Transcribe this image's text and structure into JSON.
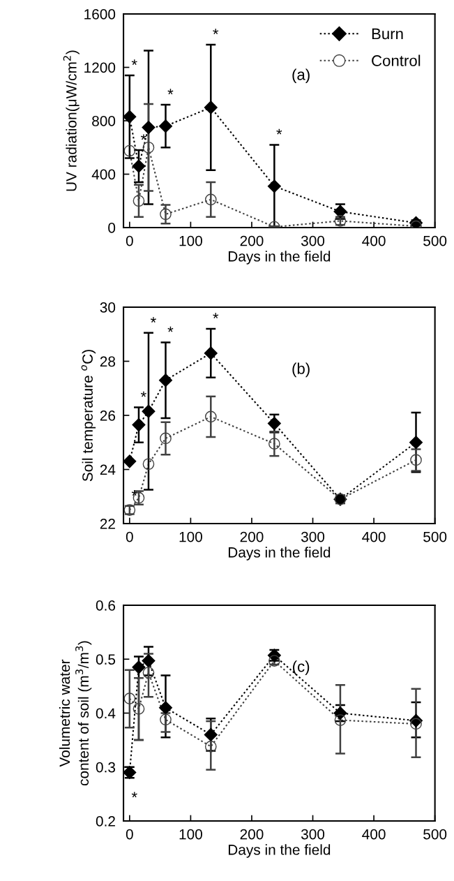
{
  "chart_data": [
    {
      "type": "line",
      "ylabel": "UV radiation(μW/cm$^{2}$)",
      "xlabel": "Days in the field",
      "x": [
        0,
        15,
        31,
        59,
        133,
        237,
        345,
        469
      ],
      "xlim": [
        -10,
        500
      ],
      "xticks": [
        0,
        100,
        200,
        300,
        400,
        500
      ],
      "ylim": [
        0,
        1600
      ],
      "yticks": [
        0,
        400,
        800,
        1200,
        1600
      ],
      "line_style": "dotted",
      "grid": false,
      "legend": "top right",
      "series": [
        {
          "name": "Burn",
          "color": "#000000",
          "marker": "diamond",
          "values": [
            830,
            460,
            750,
            760,
            900,
            310,
            120,
            35
          ],
          "errors": [
            310,
            120,
            575,
            160,
            470,
            310,
            55,
            20
          ]
        },
        {
          "name": "Control",
          "color": "#404040",
          "marker": "circle",
          "values": [
            575,
            200,
            600,
            100,
            210,
            5,
            50,
            10
          ],
          "errors": [
            null,
            120,
            325,
            70,
            130,
            5,
            30,
            10
          ]
        }
      ],
      "annotations": [
        "(a)",
        {
          "text": "*",
          "x": 0,
          "y": 1140
        },
        {
          "text": "*",
          "x": 15,
          "y": 580
        },
        {
          "text": "*",
          "x": 59,
          "y": 920
        },
        {
          "text": "*",
          "x": 133,
          "y": 1370
        },
        {
          "text": "*",
          "x": 237,
          "y": 620
        }
      ]
    },
    {
      "type": "line",
      "ylabel": "Soil temperature $^{o}$C)",
      "xlabel": "Days in the field",
      "x": [
        0,
        15,
        31,
        59,
        133,
        237,
        345,
        469
      ],
      "xlim": [
        -10,
        500
      ],
      "xticks": [
        0,
        100,
        200,
        300,
        400,
        500
      ],
      "ylim": [
        22,
        30
      ],
      "yticks": [
        22,
        24,
        26,
        28,
        30
      ],
      "line_style": "dotted",
      "grid": false,
      "series": [
        {
          "color": "#000000",
          "marker": "diamond",
          "values": [
            24.3,
            25.65,
            26.15,
            27.3,
            28.3,
            25.7,
            22.9,
            25.0
          ],
          "errors": [
            null,
            0.65,
            2.9,
            1.4,
            0.9,
            0.33,
            0.15,
            1.1
          ]
        },
        {
          "color": "#404040",
          "marker": "circle",
          "values": [
            22.5,
            22.95,
            24.2,
            25.15,
            25.95,
            24.95,
            22.9,
            24.35
          ],
          "errors": [
            0.15,
            0.25,
            null,
            0.6,
            0.75,
            0.45,
            0.15,
            0.4
          ]
        }
      ],
      "annotations": [
        "(b)",
        {
          "text": "*",
          "x": 0,
          "y": 22.65
        },
        {
          "text": "*",
          "x": 15,
          "y": 26.3
        },
        {
          "text": "*",
          "x": 31,
          "y": 29.05
        },
        {
          "text": "*",
          "x": 59,
          "y": 28.7
        },
        {
          "text": "*",
          "x": 133,
          "y": 29.2
        }
      ]
    },
    {
      "type": "line",
      "ylabel": "Volumetric water\ncontent of soil (m$^{3}$/m$^{3}$)",
      "xlabel": "Days in the field",
      "x": [
        0,
        15,
        31,
        59,
        133,
        237,
        345,
        469
      ],
      "xlim": [
        -10,
        500
      ],
      "xticks": [
        0,
        100,
        200,
        300,
        400,
        500
      ],
      "ylim": [
        0.2,
        0.6
      ],
      "yticks": [
        {
          "value": 0.2,
          "label": "0.2"
        },
        {
          "value": 0.3,
          "label": "0.3"
        },
        {
          "value": 0.4,
          "label": "0.4"
        },
        {
          "value": 0.5,
          "label": "0.5"
        },
        {
          "value": 0.6,
          "label": "0.6"
        }
      ],
      "line_style": "dotted",
      "grid": false,
      "series": [
        {
          "color": "#000000",
          "marker": "diamond",
          "values": [
            0.29,
            0.485,
            0.497,
            0.41,
            0.36,
            0.507,
            0.4,
            0.386
          ],
          "errors": [
            [
              0.28,
              0.3
            ],
            [
              0.35,
              0.505
            ],
            [
              0.47,
              0.523
            ],
            [
              0.355,
              0.47
            ],
            [
              0.33,
              0.39
            ],
            [
              0.497,
              0.517
            ],
            [
              0.385,
              0.415
            ],
            [
              0.355,
              0.42
            ]
          ]
        },
        {
          "color": "#404040",
          "marker": "circle",
          "values": [
            0.427,
            0.408,
            0.475,
            0.388,
            0.338,
            0.497,
            0.387,
            0.38
          ],
          "errors": [
            [
              0.373,
              0.48
            ],
            [
              0.35,
              0.465
            ],
            [
              0.43,
              0.51
            ],
            [
              0.365,
              0.4
            ],
            [
              0.295,
              0.385
            ],
            [
              0.49,
              0.505
            ],
            [
              0.325,
              0.452
            ],
            [
              0.318,
              0.445
            ]
          ]
        }
      ],
      "annotations": [
        "(c)",
        {
          "text": "*",
          "x": 0,
          "y": 0.28
        }
      ]
    }
  ]
}
